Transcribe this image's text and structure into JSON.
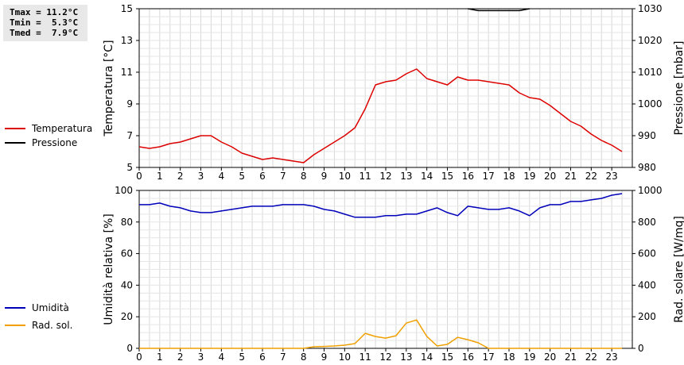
{
  "stats": {
    "tmax": "Tmax = 11.2°C",
    "tmin": "Tmin =  5.3°C",
    "tmed": "Tmed =  7.9°C"
  },
  "legend_top": [
    {
      "label": "Temperatura",
      "color": "#dd0000"
    },
    {
      "label": "Pressione",
      "color": "#000000"
    }
  ],
  "legend_bottom": [
    {
      "label": "Umidità",
      "color": "#0000bb"
    },
    {
      "label": "Rad. sol.",
      "color": "#f0a000"
    }
  ],
  "chart_data": [
    {
      "type": "line",
      "x_ticks": [
        "0",
        "1",
        "2",
        "3",
        "4",
        "5",
        "6",
        "7",
        "8",
        "9",
        "10",
        "11",
        "12",
        "13",
        "14",
        "15",
        "16",
        "17",
        "18",
        "19",
        "20",
        "21",
        "22",
        "23"
      ],
      "xlim": [
        0,
        24
      ],
      "ylabel": "Temperatura [°C]",
      "ylim": [
        5,
        15
      ],
      "y_ticks": [
        5,
        7,
        9,
        11,
        13,
        15
      ],
      "ylabel_right": "Pressione [mbar]",
      "ylim_right": [
        980,
        1030
      ],
      "y_ticks_right": [
        980,
        990,
        1000,
        1010,
        1020,
        1030
      ],
      "grid": true,
      "series": [
        {
          "name": "Temperatura",
          "color": "#dd0000",
          "axis": "left",
          "points": [
            [
              0,
              6.3
            ],
            [
              0.5,
              6.2
            ],
            [
              1,
              6.3
            ],
            [
              1.5,
              6.5
            ],
            [
              2,
              6.6
            ],
            [
              2.5,
              6.8
            ],
            [
              3,
              7.0
            ],
            [
              3.5,
              7.0
            ],
            [
              4,
              6.6
            ],
            [
              4.5,
              6.3
            ],
            [
              5,
              5.9
            ],
            [
              5.5,
              5.7
            ],
            [
              6,
              5.5
            ],
            [
              6.5,
              5.6
            ],
            [
              7,
              5.5
            ],
            [
              7.5,
              5.4
            ],
            [
              8,
              5.3
            ],
            [
              8.5,
              5.8
            ],
            [
              9,
              6.2
            ],
            [
              9.5,
              6.6
            ],
            [
              10,
              7.0
            ],
            [
              10.5,
              7.5
            ],
            [
              11,
              8.7
            ],
            [
              11.5,
              10.2
            ],
            [
              12,
              10.4
            ],
            [
              12.5,
              10.5
            ],
            [
              13,
              10.9
            ],
            [
              13.5,
              11.2
            ],
            [
              14,
              10.6
            ],
            [
              14.5,
              10.4
            ],
            [
              15,
              10.2
            ],
            [
              15.5,
              10.7
            ],
            [
              16,
              10.5
            ],
            [
              16.5,
              10.5
            ],
            [
              17,
              10.4
            ],
            [
              17.5,
              10.3
            ],
            [
              18,
              10.2
            ],
            [
              18.5,
              9.7
            ],
            [
              19,
              9.4
            ],
            [
              19.5,
              9.3
            ],
            [
              20,
              8.9
            ],
            [
              20.5,
              8.4
            ],
            [
              21,
              7.9
            ],
            [
              21.5,
              7.6
            ],
            [
              22,
              7.1
            ],
            [
              22.5,
              6.7
            ],
            [
              23,
              6.4
            ],
            [
              23.5,
              6.0
            ]
          ]
        },
        {
          "name": "Pressione",
          "color": "#000000",
          "axis": "right",
          "points": [
            [
              16,
              1030
            ],
            [
              16.5,
              1029.4
            ],
            [
              17,
              1029.4
            ],
            [
              17.5,
              1029.4
            ],
            [
              18,
              1029.4
            ],
            [
              18.5,
              1029.4
            ],
            [
              19,
              1030
            ]
          ]
        }
      ]
    },
    {
      "type": "line",
      "x_ticks": [
        "0",
        "1",
        "2",
        "3",
        "4",
        "5",
        "6",
        "7",
        "8",
        "9",
        "10",
        "11",
        "12",
        "13",
        "14",
        "15",
        "16",
        "17",
        "18",
        "19",
        "20",
        "21",
        "22",
        "23"
      ],
      "xlim": [
        0,
        24
      ],
      "ylabel": "Umidità relativa [%]",
      "ylim": [
        0,
        100
      ],
      "y_ticks": [
        0,
        20,
        40,
        60,
        80,
        100
      ],
      "ylabel_right": "Rad. solare [W/mq]",
      "ylim_right": [
        0,
        1000
      ],
      "y_ticks_right": [
        0,
        200,
        400,
        600,
        800,
        1000
      ],
      "grid": true,
      "series": [
        {
          "name": "Umidità",
          "color": "#0000bb",
          "axis": "left",
          "points": [
            [
              0,
              91
            ],
            [
              0.5,
              91
            ],
            [
              1,
              92
            ],
            [
              1.5,
              90
            ],
            [
              2,
              89
            ],
            [
              2.5,
              87
            ],
            [
              3,
              86
            ],
            [
              3.5,
              86
            ],
            [
              4,
              87
            ],
            [
              4.5,
              88
            ],
            [
              5,
              89
            ],
            [
              5.5,
              90
            ],
            [
              6,
              90
            ],
            [
              6.5,
              90
            ],
            [
              7,
              91
            ],
            [
              7.5,
              91
            ],
            [
              8,
              91
            ],
            [
              8.5,
              90
            ],
            [
              9,
              88
            ],
            [
              9.5,
              87
            ],
            [
              10,
              85
            ],
            [
              10.5,
              83
            ],
            [
              11,
              83
            ],
            [
              11.5,
              83
            ],
            [
              12,
              84
            ],
            [
              12.5,
              84
            ],
            [
              13,
              85
            ],
            [
              13.5,
              85
            ],
            [
              14,
              87
            ],
            [
              14.5,
              89
            ],
            [
              15,
              86
            ],
            [
              15.5,
              84
            ],
            [
              16,
              90
            ],
            [
              16.5,
              89
            ],
            [
              17,
              88
            ],
            [
              17.5,
              88
            ],
            [
              18,
              89
            ],
            [
              18.5,
              87
            ],
            [
              19,
              84
            ],
            [
              19.5,
              89
            ],
            [
              20,
              91
            ],
            [
              20.5,
              91
            ],
            [
              21,
              93
            ],
            [
              21.5,
              93
            ],
            [
              22,
              94
            ],
            [
              22.5,
              95
            ],
            [
              23,
              97
            ],
            [
              23.5,
              98
            ]
          ]
        },
        {
          "name": "Rad. sol.",
          "color": "#f0a000",
          "axis": "right",
          "points": [
            [
              0,
              0
            ],
            [
              0.5,
              0
            ],
            [
              1,
              0
            ],
            [
              1.5,
              0
            ],
            [
              2,
              0
            ],
            [
              2.5,
              0
            ],
            [
              3,
              0
            ],
            [
              3.5,
              0
            ],
            [
              4,
              0
            ],
            [
              4.5,
              0
            ],
            [
              5,
              0
            ],
            [
              5.5,
              0
            ],
            [
              6,
              0
            ],
            [
              6.5,
              0
            ],
            [
              7,
              0
            ],
            [
              7.5,
              0
            ],
            [
              8,
              0
            ],
            [
              8.5,
              10
            ],
            [
              9,
              12
            ],
            [
              9.5,
              15
            ],
            [
              10,
              20
            ],
            [
              10.5,
              30
            ],
            [
              11,
              95
            ],
            [
              11.5,
              75
            ],
            [
              12,
              65
            ],
            [
              12.5,
              80
            ],
            [
              13,
              160
            ],
            [
              13.5,
              180
            ],
            [
              14,
              75
            ],
            [
              14.5,
              15
            ],
            [
              15,
              25
            ],
            [
              15.5,
              70
            ],
            [
              16,
              55
            ],
            [
              16.5,
              35
            ],
            [
              17,
              0
            ],
            [
              17.5,
              0
            ],
            [
              18,
              0
            ],
            [
              18.5,
              0
            ],
            [
              19,
              0
            ],
            [
              19.5,
              0
            ],
            [
              20,
              0
            ],
            [
              20.5,
              0
            ],
            [
              21,
              0
            ],
            [
              21.5,
              0
            ],
            [
              22,
              0
            ],
            [
              22.5,
              0
            ],
            [
              23,
              0
            ],
            [
              23.5,
              0
            ]
          ]
        }
      ]
    }
  ]
}
